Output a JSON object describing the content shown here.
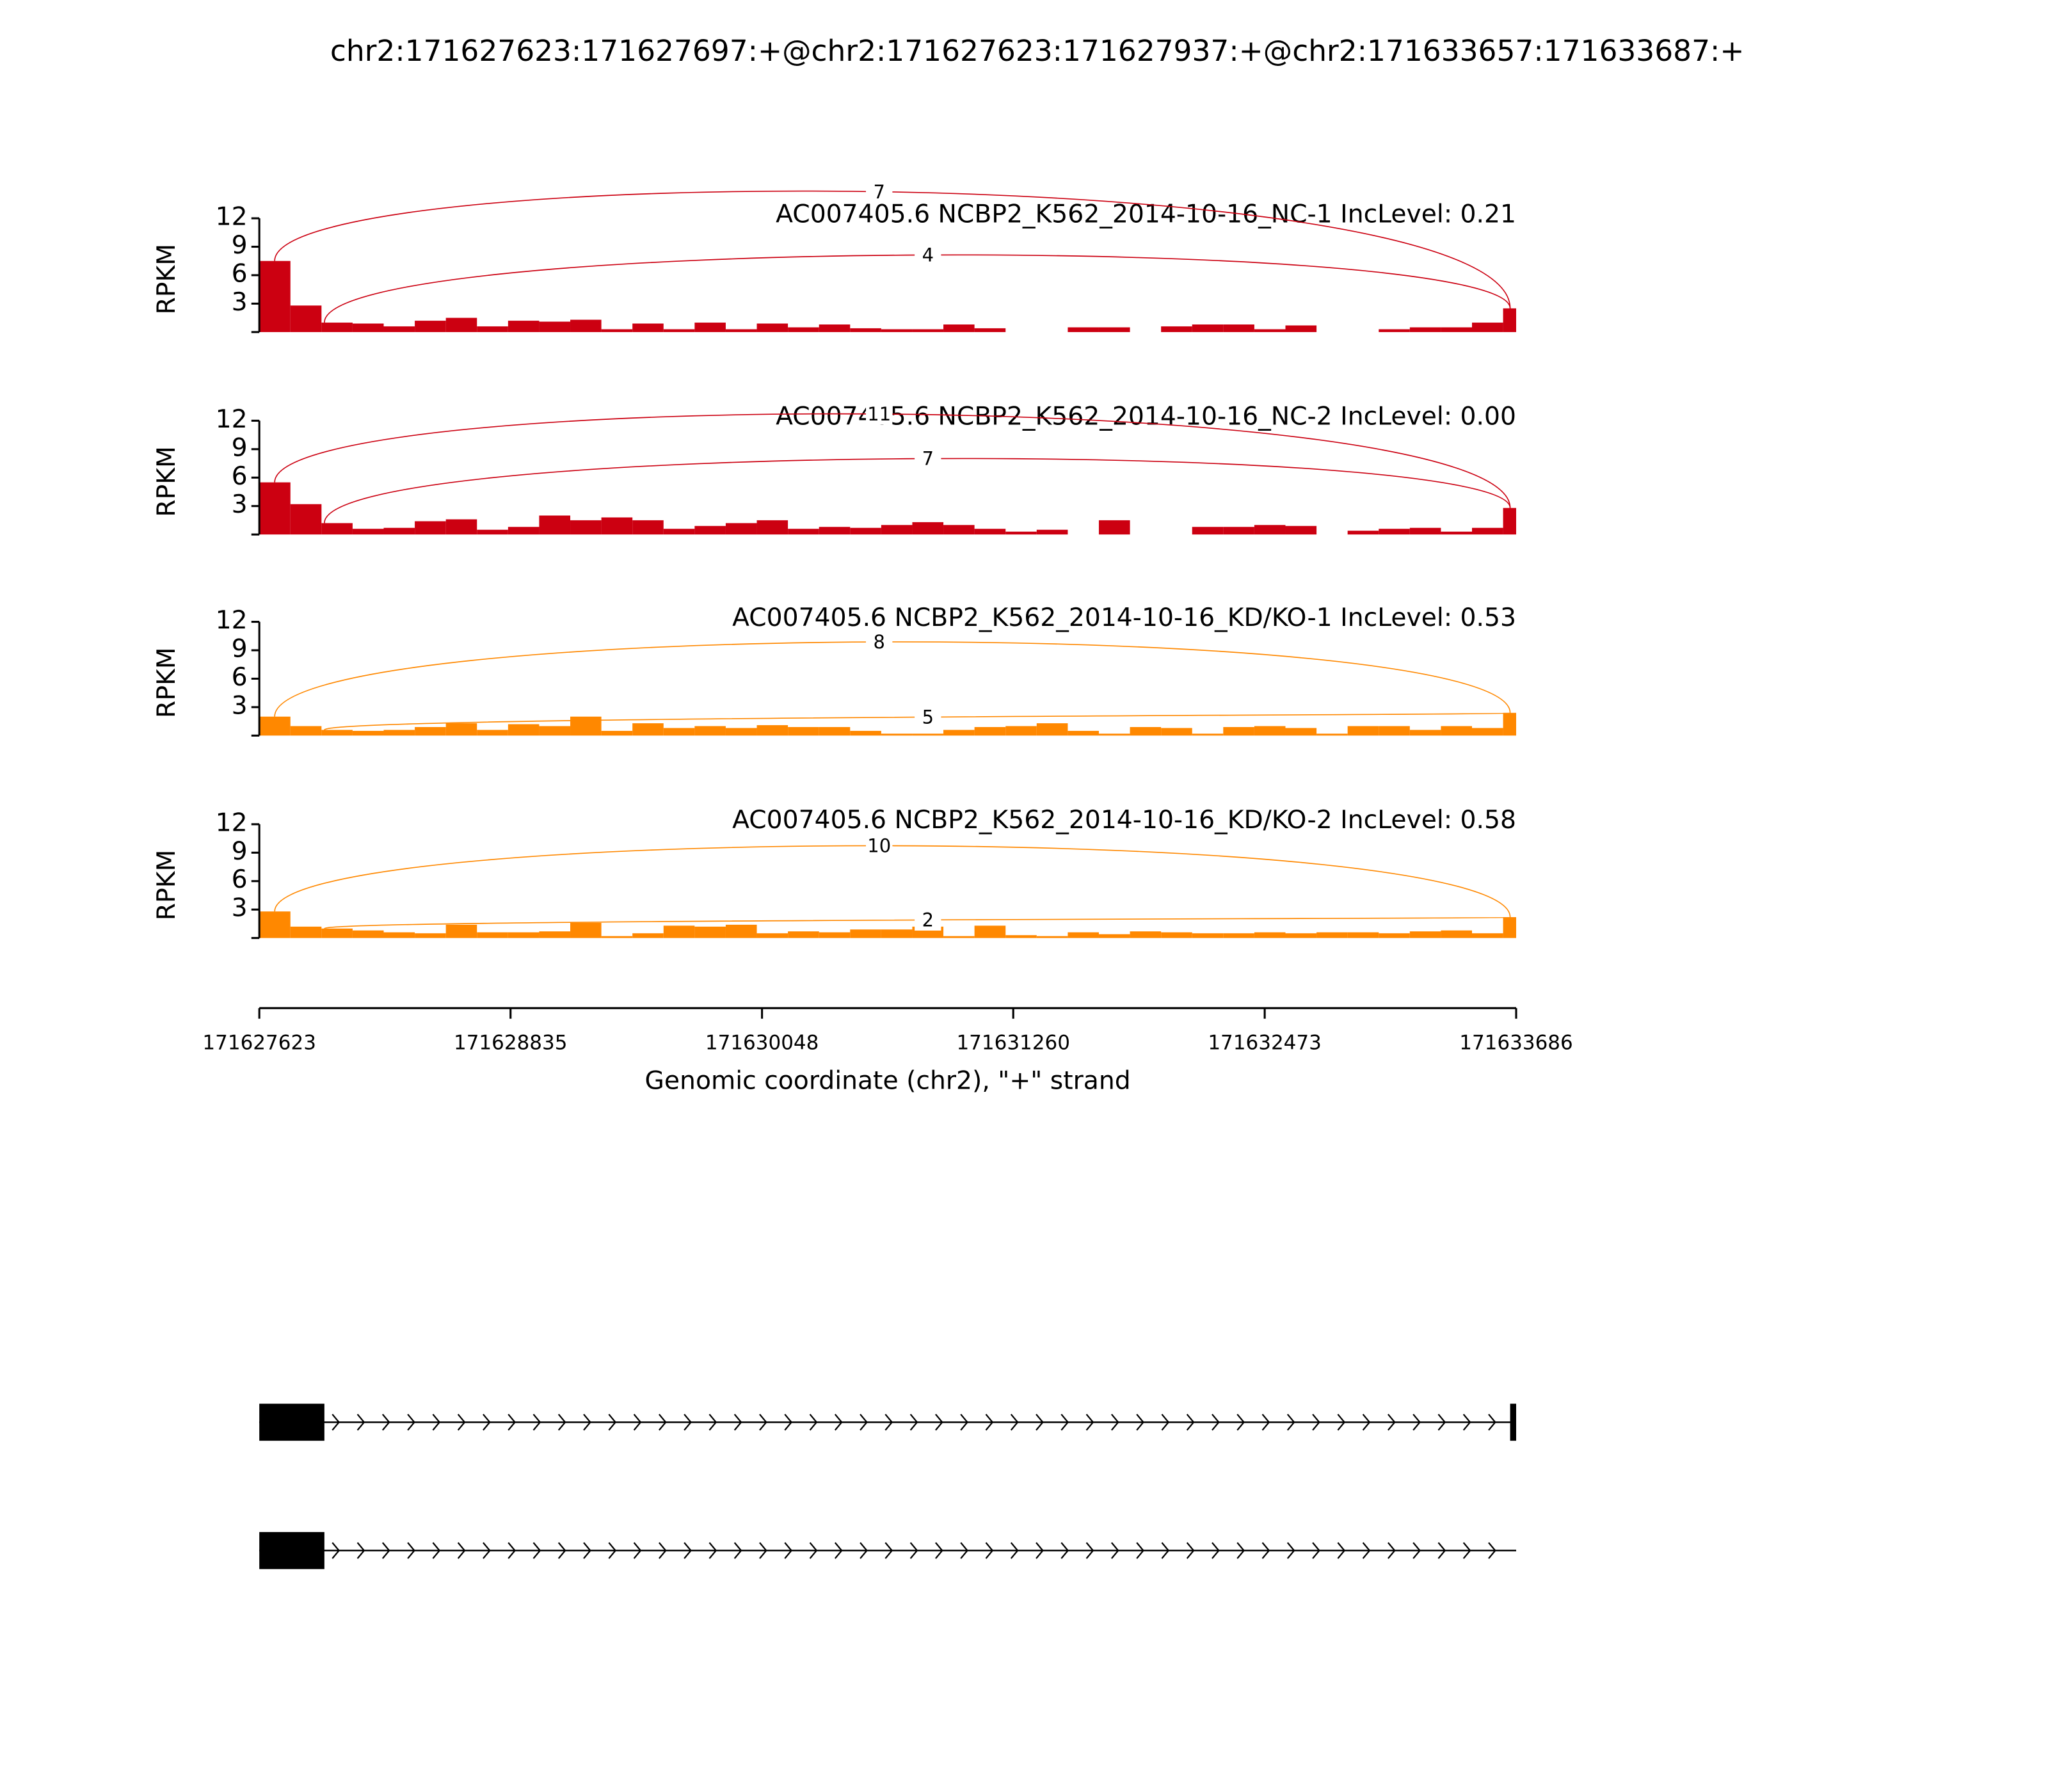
{
  "chart_data": {
    "type": "sashimi",
    "title": "chr2:171627623:171627697:+@chr2:171627623:171627937:+@chr2:171633657:171633687:+",
    "xlabel": "Genomic coordinate (chr2), \"+\" strand",
    "xlim": [
      171627623,
      171633686
    ],
    "xticks": [
      171627623,
      171628835,
      171630048,
      171631260,
      171632473,
      171633686
    ],
    "bins": [
      171627623,
      171627773,
      171627923,
      171628073,
      171628223,
      171628373,
      171628523,
      171628673,
      171628823,
      171628973,
      171629123,
      171629273,
      171629423,
      171629573,
      171629723,
      171629873,
      171630023,
      171630173,
      171630323,
      171630473,
      171630623,
      171630773,
      171630923,
      171631073,
      171631223,
      171631373,
      171631523,
      171631673,
      171631823,
      171631973,
      171632123,
      171632273,
      171632423,
      171632573,
      171632723,
      171632873,
      171633023,
      171633173,
      171633323,
      171633473,
      171633623,
      171633686
    ],
    "tracks": [
      {
        "title": "AC007405.6 NCBP2_K562_2014-10-16_NC-1 IncLevel: 0.21",
        "color": "#cc0011",
        "ylabel": "RPKM",
        "ylim": [
          0,
          12
        ],
        "yticks": [
          3,
          6,
          9,
          12
        ],
        "values": [
          7.5,
          2.8,
          1.0,
          0.9,
          0.6,
          1.2,
          1.5,
          0.6,
          1.2,
          1.1,
          1.3,
          0.3,
          0.9,
          0.3,
          1.0,
          0.3,
          0.9,
          0.5,
          0.8,
          0.4,
          0.3,
          0.3,
          0.8,
          0.4,
          0,
          0,
          0.5,
          0.5,
          0,
          0.6,
          0.8,
          0.8,
          0.3,
          0.7,
          0,
          0,
          0.3,
          0.5,
          0.5,
          1.0,
          2.5
        ],
        "junctions": [
          {
            "start": 171627697,
            "end": 171633657,
            "count": 7
          },
          {
            "start": 171627937,
            "end": 171633657,
            "count": 4
          }
        ]
      },
      {
        "title": "AC007405.6 NCBP2_K562_2014-10-16_NC-2 IncLevel: 0.00",
        "color": "#cc0011",
        "ylabel": "RPKM",
        "ylim": [
          0,
          12
        ],
        "yticks": [
          3,
          6,
          9,
          12
        ],
        "values": [
          5.5,
          3.2,
          1.2,
          0.6,
          0.7,
          1.4,
          1.6,
          0.5,
          0.8,
          2.0,
          1.5,
          1.8,
          1.5,
          0.6,
          0.9,
          1.2,
          1.5,
          0.6,
          0.8,
          0.7,
          1.0,
          1.3,
          1.0,
          0.6,
          0.3,
          0.5,
          0,
          1.5,
          0,
          0,
          0.8,
          0.8,
          1.0,
          0.9,
          0,
          0.4,
          0.6,
          0.7,
          0.3,
          0.7,
          2.8
        ],
        "junctions": [
          {
            "start": 171627697,
            "end": 171633657,
            "count": 11
          },
          {
            "start": 171627937,
            "end": 171633657,
            "count": 7
          }
        ]
      },
      {
        "title": "AC007405.6 NCBP2_K562_2014-10-16_KD/KO-1 IncLevel: 0.53",
        "color": "#ff8800",
        "ylabel": "RPKM",
        "ylim": [
          0,
          12
        ],
        "yticks": [
          3,
          6,
          9,
          12
        ],
        "values": [
          2.0,
          1.0,
          0.6,
          0.5,
          0.6,
          0.9,
          1.3,
          0.6,
          1.2,
          1.0,
          2.0,
          0.5,
          1.3,
          0.8,
          1.0,
          0.8,
          1.1,
          0.9,
          0.9,
          0.5,
          0.2,
          0.2,
          0.6,
          0.9,
          1.0,
          1.3,
          0.5,
          0.2,
          0.9,
          0.8,
          0.2,
          0.9,
          1.0,
          0.8,
          0.2,
          1.0,
          1.0,
          0.6,
          1.0,
          0.8,
          2.4
        ],
        "junctions": [
          {
            "start": 171627697,
            "end": 171633657,
            "count": 8
          },
          {
            "start": 171627937,
            "end": 171633657,
            "count": 5
          }
        ]
      },
      {
        "title": "AC007405.6 NCBP2_K562_2014-10-16_KD/KO-2 IncLevel: 0.58",
        "color": "#ff8800",
        "ylabel": "RPKM",
        "ylim": [
          0,
          12
        ],
        "yticks": [
          3,
          6,
          9,
          12
        ],
        "values": [
          2.8,
          1.2,
          1.0,
          0.8,
          0.6,
          0.5,
          1.4,
          0.6,
          0.6,
          0.7,
          1.6,
          0.2,
          0.5,
          1.3,
          1.2,
          1.4,
          0.5,
          0.7,
          0.6,
          0.9,
          0.9,
          1.2,
          0.2,
          1.3,
          0.3,
          0.2,
          0.6,
          0.4,
          0.7,
          0.6,
          0.5,
          0.5,
          0.6,
          0.5,
          0.6,
          0.6,
          0.5,
          0.7,
          0.8,
          0.5,
          2.2
        ],
        "junctions": [
          {
            "start": 171627697,
            "end": 171633657,
            "count": 10
          },
          {
            "start": 171627937,
            "end": 171633657,
            "count": 2
          }
        ]
      }
    ],
    "transcripts": [
      {
        "exons": [
          [
            171627623,
            171627937
          ],
          [
            171633657,
            171633686
          ]
        ]
      },
      {
        "exons": [
          [
            171627623,
            171627937
          ]
        ]
      }
    ]
  }
}
